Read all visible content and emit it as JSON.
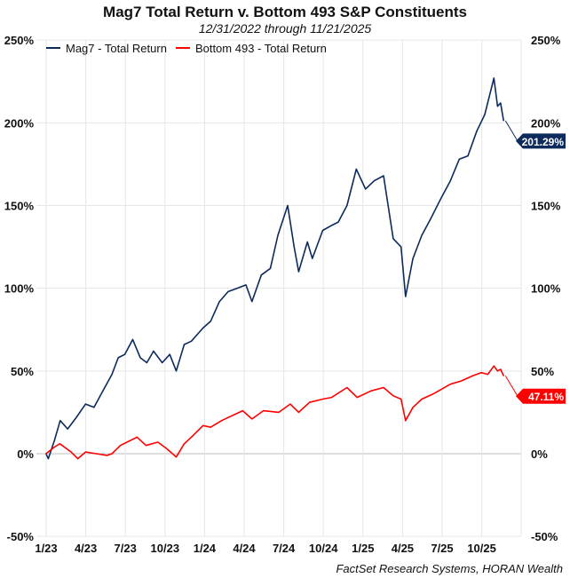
{
  "chart_data": {
    "type": "line",
    "title": "Mag7 Total Return v. Bottom 493 S&P Constituents",
    "subtitle": "12/31/2022 through 11/21/2025",
    "source": "FactSet Research Systems, HORAN Wealth",
    "ylim": [
      -50,
      250
    ],
    "yticks": [
      "250%",
      "200%",
      "150%",
      "100%",
      "50%",
      "0%",
      "-50%"
    ],
    "ytick_values": [
      250,
      200,
      150,
      100,
      50,
      0,
      -50
    ],
    "xticks": [
      "1/23",
      "4/23",
      "7/23",
      "10/23",
      "1/24",
      "4/24",
      "7/24",
      "10/24",
      "1/25",
      "4/25",
      "7/25",
      "10/25"
    ],
    "xtick_dates": [
      "2023-01-01",
      "2023-04-01",
      "2023-07-01",
      "2023-10-01",
      "2024-01-01",
      "2024-04-01",
      "2024-07-01",
      "2024-10-01",
      "2025-01-01",
      "2025-04-01",
      "2025-07-01",
      "2025-10-01"
    ],
    "grid": true,
    "legend": "top-left",
    "series": [
      {
        "name": "Mag7 - Total Return",
        "color": "#0d2a5c",
        "end_label": "201.29%",
        "points": [
          [
            "2022-12-31",
            0
          ],
          [
            "2023-01-06",
            -3
          ],
          [
            "2023-01-20",
            8
          ],
          [
            "2023-02-03",
            20
          ],
          [
            "2023-02-20",
            15
          ],
          [
            "2023-03-10",
            22
          ],
          [
            "2023-03-31",
            30
          ],
          [
            "2023-04-20",
            28
          ],
          [
            "2023-05-10",
            38
          ],
          [
            "2023-05-31",
            48
          ],
          [
            "2023-06-15",
            58
          ],
          [
            "2023-06-30",
            60
          ],
          [
            "2023-07-18",
            69
          ],
          [
            "2023-08-05",
            58
          ],
          [
            "2023-08-20",
            55
          ],
          [
            "2023-09-05",
            62
          ],
          [
            "2023-09-25",
            55
          ],
          [
            "2023-10-12",
            60
          ],
          [
            "2023-10-27",
            50
          ],
          [
            "2023-11-15",
            66
          ],
          [
            "2023-12-01",
            68
          ],
          [
            "2023-12-28",
            76
          ],
          [
            "2024-01-15",
            80
          ],
          [
            "2024-02-05",
            92
          ],
          [
            "2024-02-25",
            98
          ],
          [
            "2024-03-15",
            100
          ],
          [
            "2024-04-05",
            102
          ],
          [
            "2024-04-19",
            92
          ],
          [
            "2024-05-10",
            108
          ],
          [
            "2024-05-31",
            112
          ],
          [
            "2024-06-18",
            132
          ],
          [
            "2024-07-10",
            150
          ],
          [
            "2024-07-25",
            125
          ],
          [
            "2024-08-05",
            110
          ],
          [
            "2024-08-25",
            128
          ],
          [
            "2024-09-06",
            118
          ],
          [
            "2024-09-30",
            135
          ],
          [
            "2024-10-20",
            138
          ],
          [
            "2024-11-05",
            140
          ],
          [
            "2024-11-25",
            150
          ],
          [
            "2024-12-16",
            172
          ],
          [
            "2025-01-07",
            160
          ],
          [
            "2025-01-27",
            165
          ],
          [
            "2025-02-18",
            168
          ],
          [
            "2025-03-10",
            130
          ],
          [
            "2025-03-28",
            125
          ],
          [
            "2025-04-08",
            95
          ],
          [
            "2025-04-25",
            118
          ],
          [
            "2025-05-15",
            132
          ],
          [
            "2025-06-05",
            142
          ],
          [
            "2025-06-30",
            155
          ],
          [
            "2025-07-20",
            165
          ],
          [
            "2025-08-10",
            178
          ],
          [
            "2025-08-30",
            180
          ],
          [
            "2025-09-20",
            195
          ],
          [
            "2025-10-08",
            205
          ],
          [
            "2025-10-29",
            227
          ],
          [
            "2025-11-07",
            210
          ],
          [
            "2025-11-14",
            212
          ],
          [
            "2025-11-21",
            201.29
          ]
        ]
      },
      {
        "name": "Bottom 493 - Total Return",
        "color": "#ff0000",
        "end_label": "47.11%",
        "points": [
          [
            "2022-12-31",
            0
          ],
          [
            "2023-01-20",
            4
          ],
          [
            "2023-02-02",
            6
          ],
          [
            "2023-02-28",
            1
          ],
          [
            "2023-03-13",
            -3
          ],
          [
            "2023-03-31",
            1
          ],
          [
            "2023-04-25",
            0
          ],
          [
            "2023-05-20",
            -1
          ],
          [
            "2023-05-31",
            0
          ],
          [
            "2023-06-20",
            5
          ],
          [
            "2023-07-28",
            10
          ],
          [
            "2023-08-18",
            5
          ],
          [
            "2023-09-15",
            7
          ],
          [
            "2023-10-05",
            3
          ],
          [
            "2023-10-27",
            -2
          ],
          [
            "2023-11-15",
            6
          ],
          [
            "2023-12-01",
            10
          ],
          [
            "2023-12-28",
            17
          ],
          [
            "2024-01-15",
            16
          ],
          [
            "2024-02-10",
            20
          ],
          [
            "2024-03-28",
            26
          ],
          [
            "2024-04-19",
            21
          ],
          [
            "2024-05-15",
            26
          ],
          [
            "2024-06-20",
            25
          ],
          [
            "2024-07-16",
            30
          ],
          [
            "2024-08-05",
            25
          ],
          [
            "2024-08-30",
            31
          ],
          [
            "2024-09-30",
            33
          ],
          [
            "2024-10-20",
            34
          ],
          [
            "2024-11-25",
            40
          ],
          [
            "2024-12-18",
            34
          ],
          [
            "2025-01-20",
            38
          ],
          [
            "2025-02-18",
            40
          ],
          [
            "2025-03-10",
            35
          ],
          [
            "2025-03-28",
            33
          ],
          [
            "2025-04-08",
            20
          ],
          [
            "2025-04-25",
            28
          ],
          [
            "2025-05-15",
            33
          ],
          [
            "2025-06-10",
            36
          ],
          [
            "2025-07-20",
            42
          ],
          [
            "2025-08-15",
            44
          ],
          [
            "2025-09-10",
            47
          ],
          [
            "2025-09-30",
            49
          ],
          [
            "2025-10-15",
            48
          ],
          [
            "2025-10-29",
            53
          ],
          [
            "2025-11-07",
            50
          ],
          [
            "2025-11-14",
            51
          ],
          [
            "2025-11-21",
            47.11
          ]
        ]
      }
    ]
  }
}
